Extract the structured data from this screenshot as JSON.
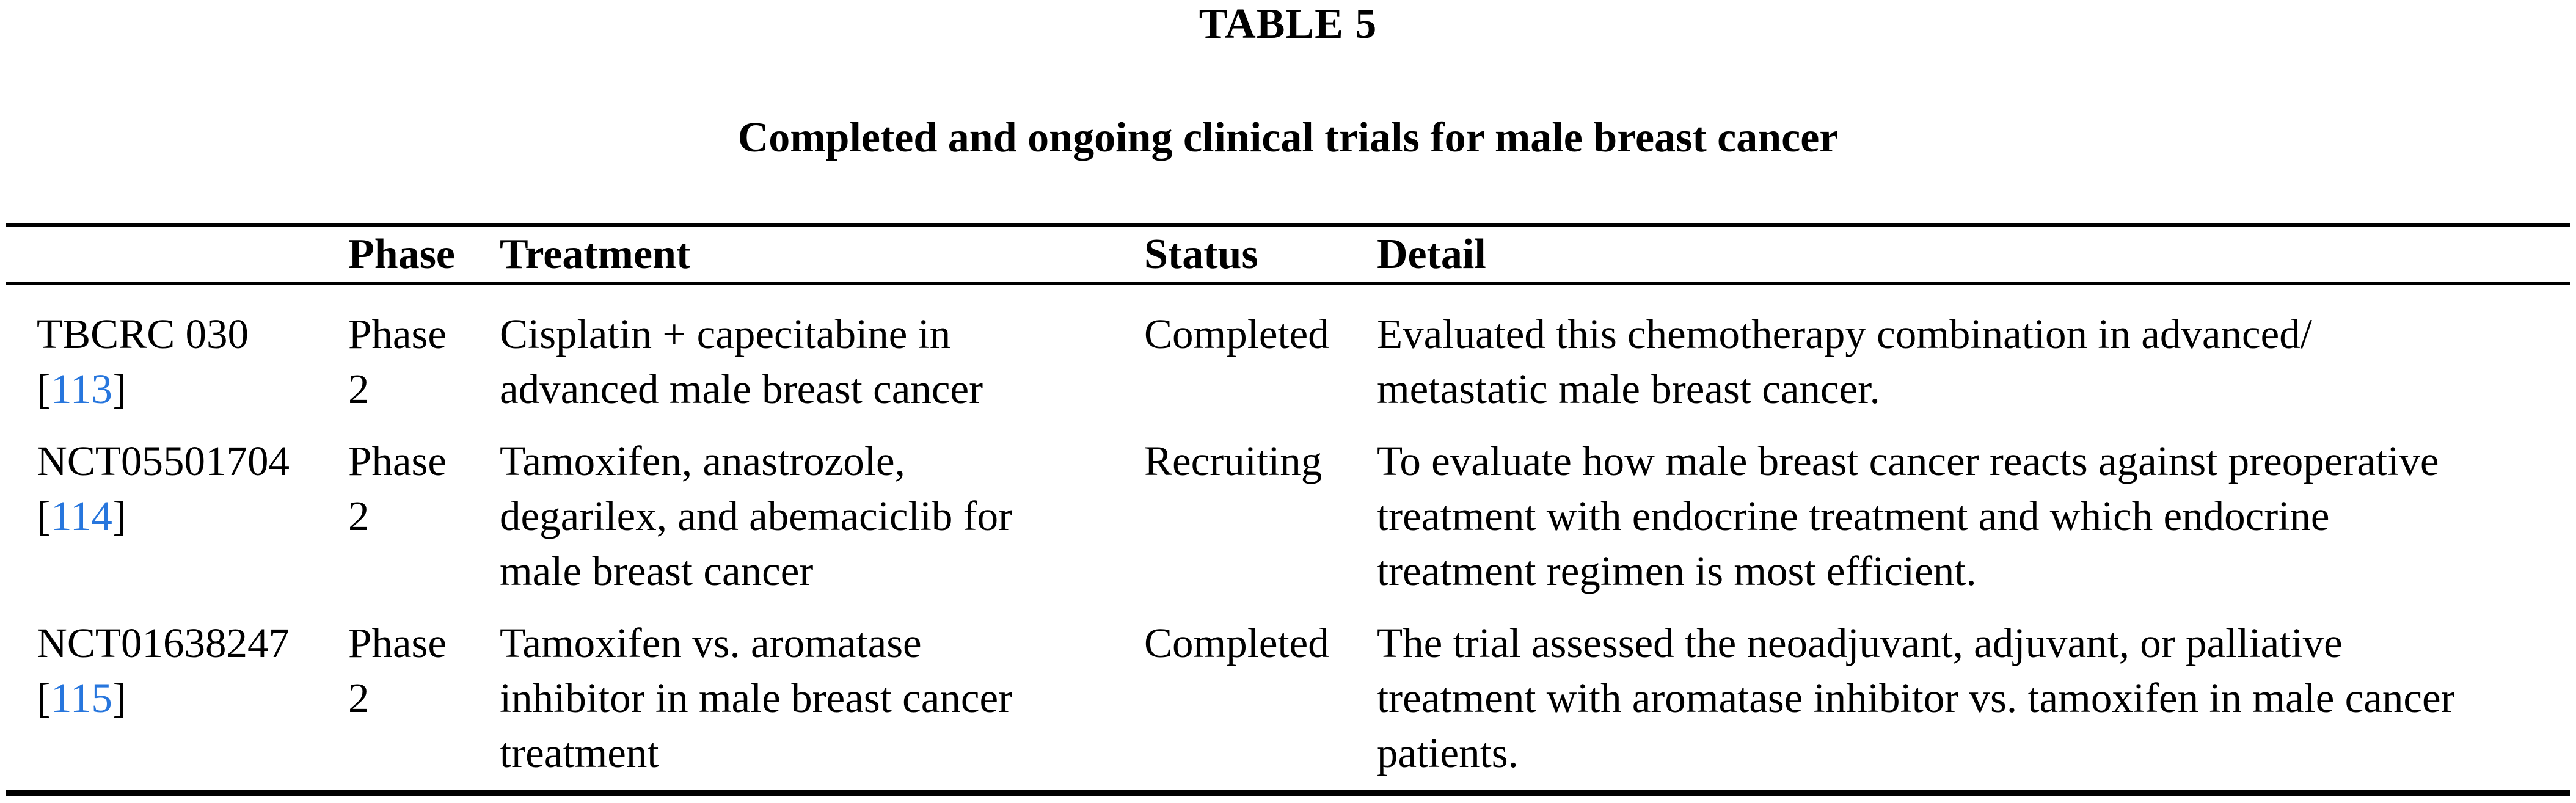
{
  "page": {
    "label": "TABLE 5",
    "caption": "Completed and ongoing clinical trials for male breast cancer"
  },
  "table": {
    "columns": [
      "",
      "Phase",
      "Treatment",
      "Status",
      "Detail"
    ],
    "rows": [
      {
        "trial_id": "TBCRC 030",
        "reference": "113",
        "phase": "Phase\n2",
        "treatment": "Cisplatin + capecitabine in\nadvanced male breast cancer",
        "status": "Completed",
        "detail": "Evaluated this chemotherapy combination in advanced/\nmetastatic male breast cancer."
      },
      {
        "trial_id": "NCT05501704",
        "reference": "114",
        "phase": "Phase\n2",
        "treatment": "Tamoxifen, anastrozole,\ndegarilex, and abemaciclib for\nmale breast cancer",
        "status": "Recruiting",
        "detail": "To evaluate how male breast cancer reacts against preoperative\ntreatment with endocrine treatment and which endocrine\ntreatment regimen is most efficient."
      },
      {
        "trial_id": "NCT01638247",
        "reference": "115",
        "phase": "Phase\n2",
        "treatment": "Tamoxifen vs. aromatase\ninhibitor in male breast cancer\ntreatment",
        "status": "Completed",
        "detail": "The trial assessed the neoadjuvant, adjuvant, or palliative\ntreatment with aromatase inhibitor vs. tamoxifen in male cancer\npatients."
      }
    ]
  },
  "strings": {
    "bracket_open": "[",
    "bracket_close": "]"
  },
  "colors": {
    "link_blue": "#2776dd",
    "text_black": "#000000",
    "rule_black": "#000000"
  }
}
